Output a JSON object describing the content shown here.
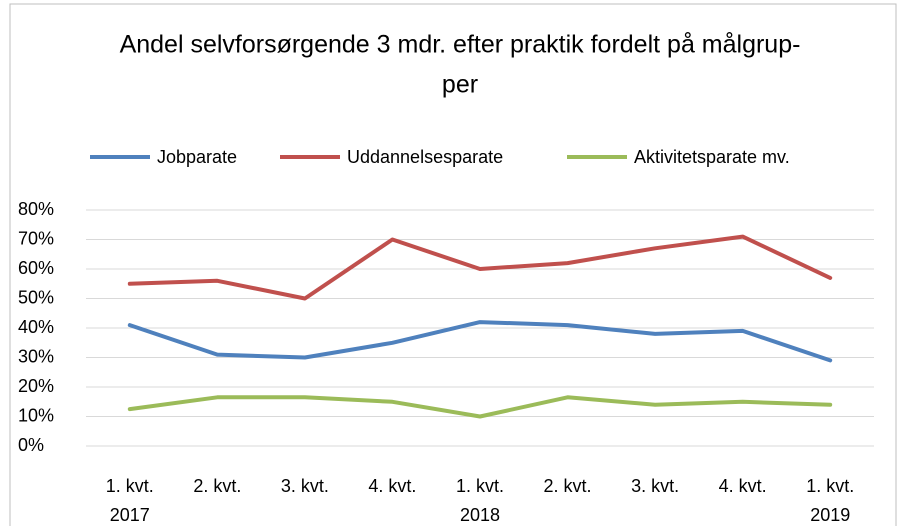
{
  "chart_data": {
    "type": "line",
    "title": [
      "Andel selvforsørgende 3 mdr. efter praktik fordelt på målgrup-",
      "per"
    ],
    "categories": [
      [
        "1. kvt.",
        "2017"
      ],
      [
        "2. kvt."
      ],
      [
        "3. kvt."
      ],
      [
        "4. kvt."
      ],
      [
        "1. kvt.",
        "2018"
      ],
      [
        "2. kvt."
      ],
      [
        "3. kvt."
      ],
      [
        "4. kvt."
      ],
      [
        "1. kvt.",
        "2019"
      ]
    ],
    "series": [
      {
        "name": "Jobparate",
        "color": "#4f81bd",
        "values": [
          41,
          31,
          30,
          35,
          42,
          41,
          38,
          39,
          29
        ]
      },
      {
        "name": "Uddannelsesparate",
        "color": "#c0504d",
        "values": [
          55,
          56,
          50,
          70,
          60,
          62,
          67,
          71,
          57
        ]
      },
      {
        "name": "Aktivitetsparate mv.",
        "color": "#9bbb59",
        "values": [
          12.5,
          16.5,
          16.5,
          15,
          10,
          16.5,
          14,
          15,
          14
        ]
      }
    ],
    "ylim": [
      0,
      80
    ],
    "yticks": [
      {
        "value": 0,
        "label": "0%"
      },
      {
        "value": 10,
        "label": "10%"
      },
      {
        "value": 20,
        "label": "20%"
      },
      {
        "value": 30,
        "label": "30%"
      },
      {
        "value": 40,
        "label": "40%"
      },
      {
        "value": 50,
        "label": "50%"
      },
      {
        "value": 60,
        "label": "60%"
      },
      {
        "value": 70,
        "label": "70%"
      },
      {
        "value": 80,
        "label": "80%"
      }
    ],
    "grid": true,
    "legend": "top"
  }
}
